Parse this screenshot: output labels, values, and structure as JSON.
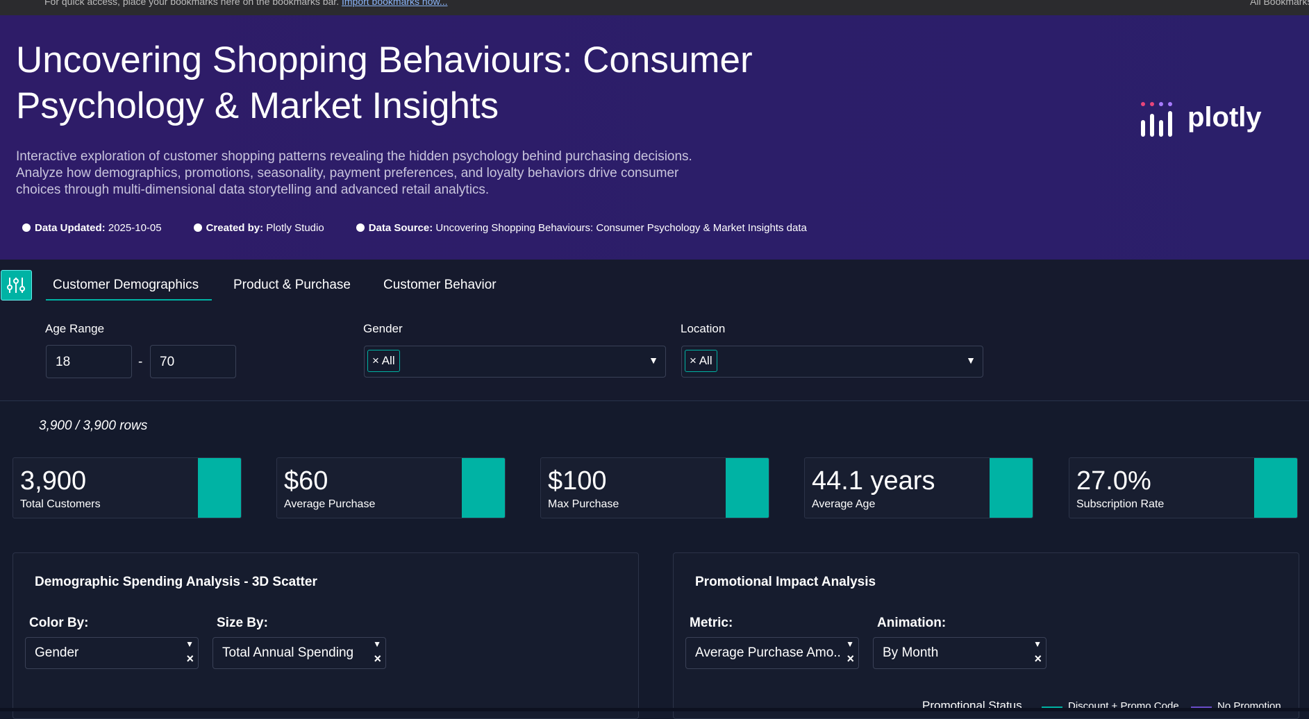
{
  "browser": {
    "bookmarks_hint": "For quick access, place your bookmarks here on the bookmarks bar.",
    "import_link": "Import bookmarks now...",
    "all_bookmarks": "All Bookmarks"
  },
  "header": {
    "title_line1": "Uncovering Shopping Behaviours: Consumer",
    "title_line2": "Psychology & Market Insights",
    "description": [
      "Interactive exploration of customer shopping patterns revealing the hidden psychology behind purchasing decisions.",
      "Analyze how demographics, promotions, seasonality, payment preferences, and loyalty behaviors drive consumer",
      "choices through multi-dimensional data storytelling and advanced retail analytics."
    ],
    "meta": [
      {
        "label": "Data Updated:",
        "value": "2025-10-05"
      },
      {
        "label": "Created by:",
        "value": "Plotly Studio"
      },
      {
        "label": "Data Source:",
        "value": "Uncovering Shopping Behaviours: Consumer Psychology & Market Insights data"
      }
    ],
    "logo": "plotly"
  },
  "tabs": [
    "Customer Demographics",
    "Product & Purchase",
    "Customer Behavior"
  ],
  "filters": {
    "age_label": "Age Range",
    "age_min": "18",
    "age_sep": "-",
    "age_max": "70",
    "gender_label": "Gender",
    "gender_value": "All",
    "location_label": "Location",
    "location_value": "All"
  },
  "rows": "3,900 / 3,900 rows",
  "kpis": [
    {
      "value": "3,900",
      "label": "Total Customers"
    },
    {
      "value": "$60",
      "label": "Average Purchase"
    },
    {
      "value": "$100",
      "label": "Max Purchase"
    },
    {
      "value": "44.1 years",
      "label": "Average Age"
    },
    {
      "value": "27.0%",
      "label": "Subscription Rate"
    }
  ],
  "panels": [
    {
      "title": "Demographic Spending Analysis - 3D Scatter",
      "controls": [
        {
          "label": "Color By:",
          "value": "Gender"
        },
        {
          "label": "Size By:",
          "value": "Total Annual Spending"
        }
      ]
    },
    {
      "title": "Promotional Impact Analysis",
      "controls": [
        {
          "label": "Metric:",
          "value": "Average Purchase Amo..."
        },
        {
          "label": "Animation:",
          "value": "By Month"
        }
      ],
      "legend_title": "Promotional Status",
      "legend": [
        "Discount + Promo Code",
        "No Promotion"
      ]
    }
  ]
}
